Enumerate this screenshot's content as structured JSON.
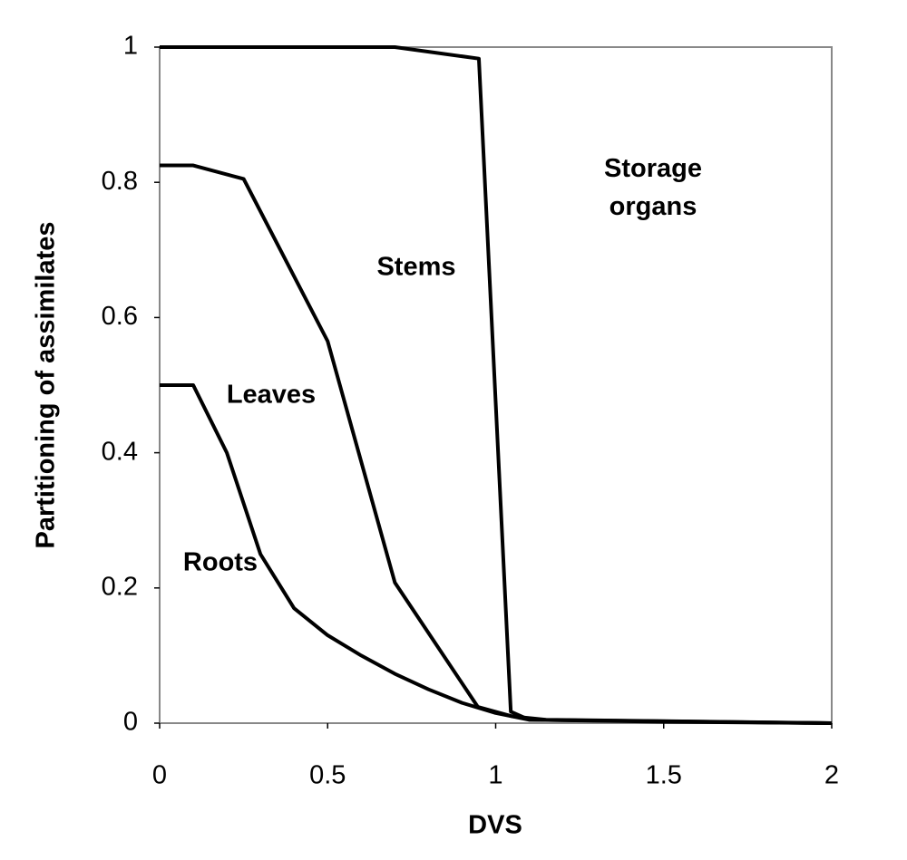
{
  "chart_data": {
    "type": "line",
    "xlabel": "DVS",
    "ylabel": "Partitioning of assimilates",
    "xlim": [
      0,
      2
    ],
    "ylim": [
      0,
      1
    ],
    "xticks": [
      0,
      0.5,
      1,
      1.5,
      2
    ],
    "yticks": [
      0,
      0.2,
      0.4,
      0.6,
      0.8,
      1
    ],
    "color": "#000000",
    "series": [
      {
        "x": [
          0,
          0.7,
          0.95,
          1.045,
          1.1,
          2
        ],
        "values": [
          1,
          1,
          0.983,
          0.017,
          0.005,
          0
        ]
      },
      {
        "x": [
          0,
          0.1,
          0.25,
          0.5,
          0.7,
          0.947,
          1.05,
          1.15,
          2
        ],
        "values": [
          0.825,
          0.825,
          0.805,
          0.565,
          0.208,
          0.024,
          0.01,
          0.005,
          0
        ]
      },
      {
        "x": [
          0,
          0.1,
          0.2,
          0.3,
          0.4,
          0.5,
          0.6,
          0.7,
          0.8,
          0.9,
          1,
          1.1,
          1.5,
          2
        ],
        "values": [
          0.5,
          0.5,
          0.4,
          0.25,
          0.17,
          0.13,
          0.1,
          0.073,
          0.05,
          0.03,
          0.015,
          0.005,
          0.002,
          0
        ]
      }
    ],
    "annotations": [
      "Stems",
      "Leaves",
      "Roots",
      "Storage organs"
    ]
  }
}
